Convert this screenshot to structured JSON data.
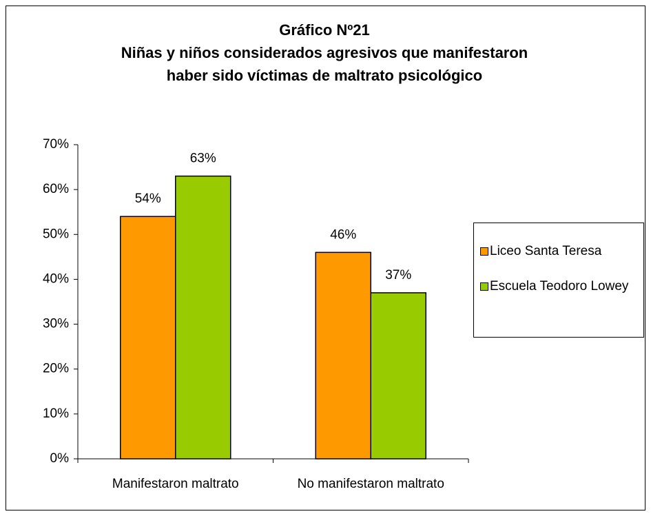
{
  "chart_data": {
    "type": "bar",
    "title": [
      "Gráfico Nº21",
      "Niñas y niños considerados agresivos que manifestaron",
      "haber sido víctimas de maltrato psicológico"
    ],
    "categories": [
      "Manifestaron maltrato",
      "No manifestaron maltrato"
    ],
    "series": [
      {
        "name": "Liceo Santa Teresa",
        "color": "#FF9900",
        "values": [
          54,
          46
        ],
        "value_labels": [
          "54%",
          "46%"
        ]
      },
      {
        "name": "Escuela Teodoro Lowey",
        "color": "#99CC00",
        "values": [
          63,
          37
        ],
        "value_labels": [
          "63%",
          "37%"
        ]
      }
    ],
    "ylim": [
      0,
      70
    ],
    "yticks": [
      {
        "value": 0,
        "label": "0%"
      },
      {
        "value": 10,
        "label": "10%"
      },
      {
        "value": 20,
        "label": "20%"
      },
      {
        "value": 30,
        "label": "30%"
      },
      {
        "value": 40,
        "label": "40%"
      },
      {
        "value": 50,
        "label": "50%"
      },
      {
        "value": 60,
        "label": "60%"
      },
      {
        "value": 70,
        "label": "70%"
      }
    ],
    "legend": "right"
  }
}
